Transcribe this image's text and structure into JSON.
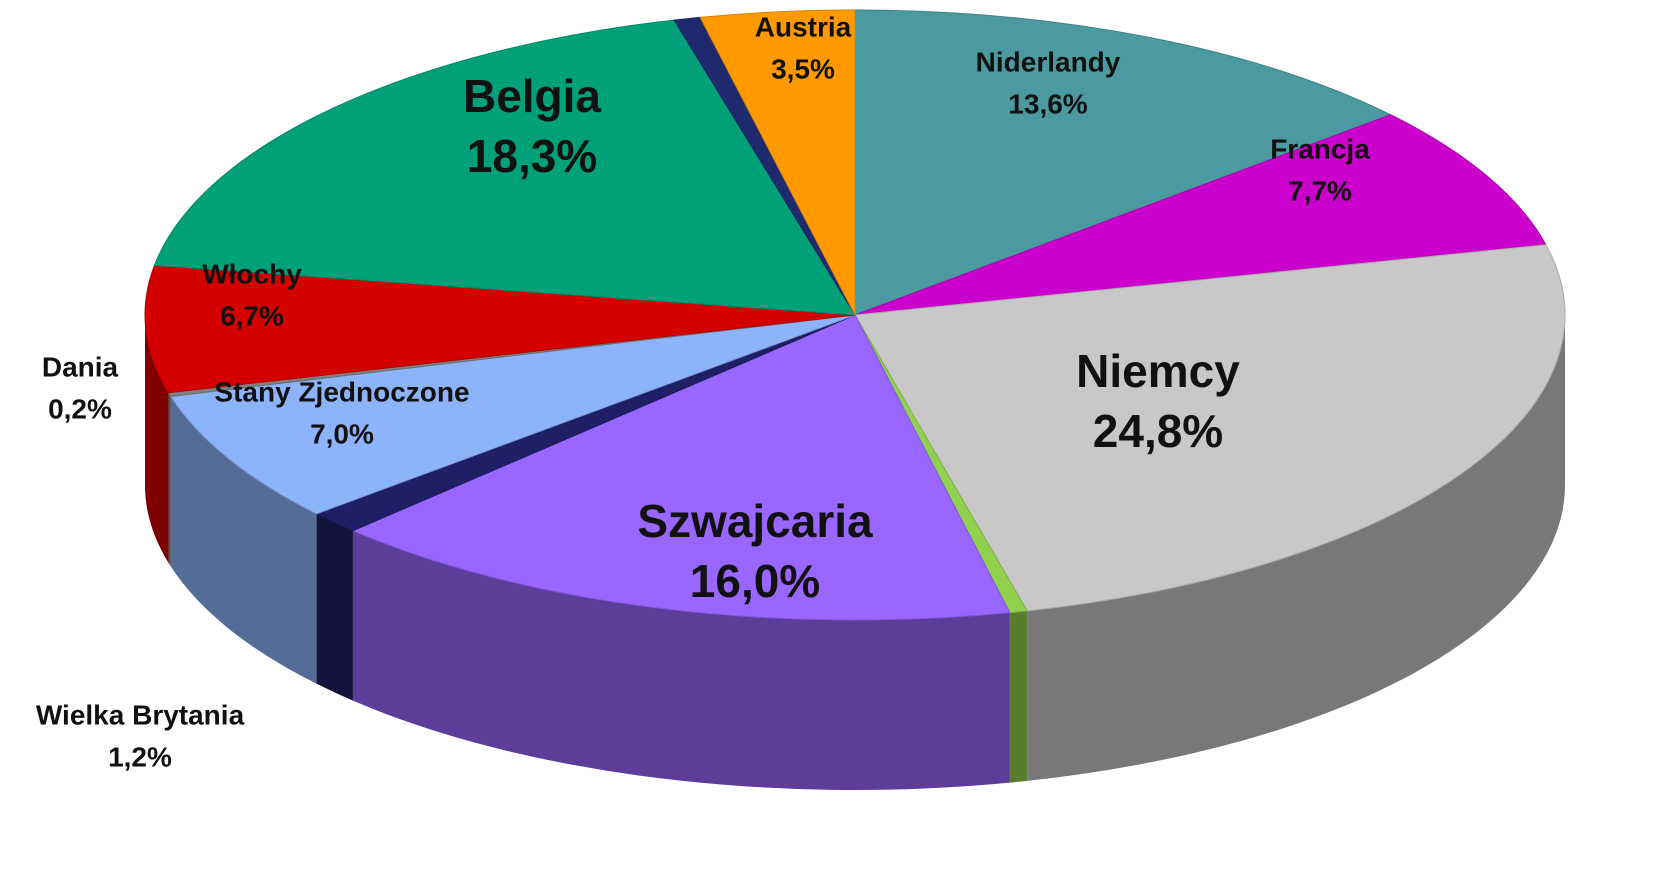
{
  "chart_data": {
    "type": "pie",
    "categories": [
      "Niderlandy",
      "Francja",
      "Niemcy",
      null,
      "Szwajcaria",
      "Wielka Brytania",
      "Stany Zjednoczone",
      "Dania",
      "Włochy",
      "Belgia",
      null,
      "Austria"
    ],
    "values": [
      13.6,
      7.7,
      24.8,
      0.4,
      16.0,
      1.2,
      7.0,
      0.2,
      6.7,
      18.3,
      0.6,
      3.5
    ],
    "value_labels": [
      "13,6%",
      "7,7%",
      "24,8%",
      null,
      "16,0%",
      "1,2%",
      "7,0%",
      "0,2%",
      "6,7%",
      "18,3%",
      null,
      "3,5%"
    ],
    "colors": [
      "#4a9aa0",
      "#cc00cc",
      "#c8c8c8",
      "#92d050",
      "#9966ff",
      "#1f1f66",
      "#8db4fa",
      "#808080",
      "#d40000",
      "#00a079",
      "#1f2a6e",
      "#ff9900"
    ]
  }
}
